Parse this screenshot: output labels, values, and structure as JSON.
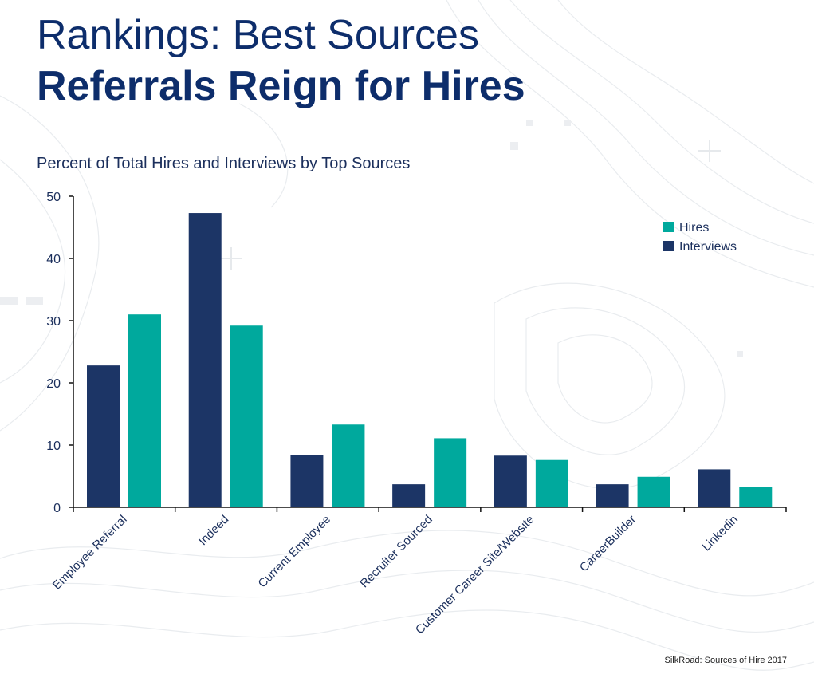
{
  "header": {
    "title_line1": "Rankings: Best Sources",
    "title_line2": "Referrals Reign for Hires"
  },
  "footer": {
    "source": "SilkRoad: Sources of Hire 2017"
  },
  "colors": {
    "title": "#0d2d6b",
    "interviews": "#1c3566",
    "hires": "#00a99d"
  },
  "chart_data": {
    "type": "bar",
    "title": "Percent of Total Hires and Interviews by Top Sources",
    "xlabel": "",
    "ylabel": "",
    "ylim": [
      0,
      50
    ],
    "yticks": [
      0,
      10,
      20,
      30,
      40,
      50
    ],
    "grid": false,
    "legend_position": "top-right",
    "categories": [
      "Employee Referral",
      "Indeed",
      "Current Employee",
      "Recruiter Sourced",
      "Customer Career Site/Website",
      "CareerBuilder",
      "Linkedin"
    ],
    "series": [
      {
        "name": "Interviews",
        "color": "#1c3566",
        "values": [
          22.8,
          47.3,
          8.4,
          3.7,
          8.3,
          3.7,
          6.1
        ]
      },
      {
        "name": "Hires",
        "color": "#00a99d",
        "values": [
          31.0,
          29.2,
          13.3,
          11.1,
          7.6,
          4.9,
          3.3
        ]
      }
    ],
    "legend_order": [
      "Hires",
      "Interviews"
    ]
  }
}
